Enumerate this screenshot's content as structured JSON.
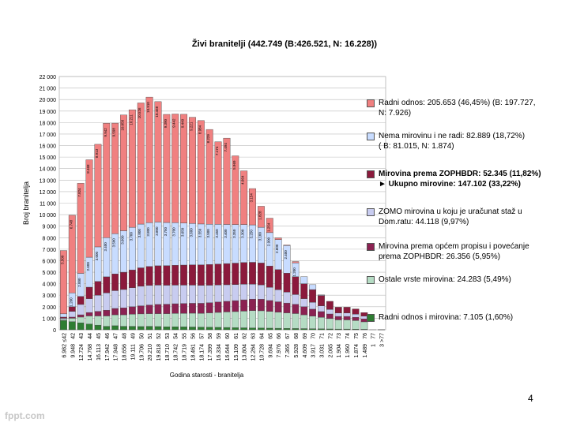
{
  "slide": {
    "title": "Živi branitelji (442.749 (B:426.521, N: 16.228))",
    "page_number": "4",
    "footer_brand": "fppt.com"
  },
  "chart_data": {
    "type": "bar",
    "stacked": true,
    "xlabel": "Godina starosti - branitelja",
    "ylabel": "Broj branitelja",
    "ylim": [
      0,
      22000
    ],
    "yticks": [
      "0",
      "1 000",
      "2 000",
      "3 000",
      "4 000",
      "5 000",
      "6 000",
      "7 000",
      "8 000",
      "9 000",
      "10 000",
      "11 000",
      "12 000",
      "13 000",
      "14 000",
      "15 000",
      "16 000",
      "17 000",
      "18 000",
      "19 000",
      "20 000",
      "21 000",
      "22 000"
    ],
    "grid": true,
    "legend_position": "right",
    "categories": [
      {
        "age": "≤42",
        "total": "6.982"
      },
      {
        "age": "42",
        "total": "9.948"
      },
      {
        "age": "43",
        "total": "12.724"
      },
      {
        "age": "44",
        "total": "14.768"
      },
      {
        "age": "45",
        "total": "16.113"
      },
      {
        "age": "46",
        "total": "17.942"
      },
      {
        "age": "47",
        "total": "17.948"
      },
      {
        "age": "48",
        "total": "18.656"
      },
      {
        "age": "49",
        "total": "19.111"
      },
      {
        "age": "50",
        "total": "19.706"
      },
      {
        "age": "51",
        "total": "20.210"
      },
      {
        "age": "52",
        "total": "19.818"
      },
      {
        "age": "53",
        "total": "18.710"
      },
      {
        "age": "54",
        "total": "18.742"
      },
      {
        "age": "55",
        "total": "18.719"
      },
      {
        "age": "56",
        "total": "18.461"
      },
      {
        "age": "57",
        "total": "18.174"
      },
      {
        "age": "58",
        "total": "17.399"
      },
      {
        "age": "59",
        "total": "16.334"
      },
      {
        "age": "60",
        "total": "16.644"
      },
      {
        "age": "61",
        "total": "15.109"
      },
      {
        "age": "62",
        "total": "13.804"
      },
      {
        "age": "63",
        "total": "12.264"
      },
      {
        "age": "64",
        "total": "10.728"
      },
      {
        "age": "65",
        "total": "9.694"
      },
      {
        "age": "66",
        "total": "7.976"
      },
      {
        "age": "67",
        "total": "7.365"
      },
      {
        "age": "68",
        "total": "5.928"
      },
      {
        "age": "69",
        "total": "4.609"
      },
      {
        "age": "70",
        "total": "3.917"
      },
      {
        "age": "71",
        "total": "3.031"
      },
      {
        "age": "72",
        "total": "2.065"
      },
      {
        "age": "73",
        "total": "1.904"
      },
      {
        "age": "74",
        "total": "1.960"
      },
      {
        "age": "75",
        "total": "1.874"
      },
      {
        "age": "76",
        "total": "1.489"
      },
      {
        "age": "77",
        "total": "1"
      },
      {
        "age": ">77",
        "total": "3"
      }
    ],
    "series": [
      {
        "name": "Radni odnos i mirovina: 7.105 (1,60%)",
        "color": "#2e7d32",
        "values": [
          800,
          700,
          600,
          500,
          400,
          300,
          350,
          300,
          300,
          280,
          300,
          280,
          260,
          260,
          250,
          240,
          230,
          220,
          210,
          200,
          180,
          170,
          160,
          150,
          140,
          130,
          120,
          110,
          100,
          90,
          80,
          70,
          60,
          60,
          50,
          40,
          0,
          1
        ]
      },
      {
        "name": "Ostale vrste mirovina: 24.283 (5,49%)",
        "color": "#b5dcc4",
        "values": [
          100,
          300,
          500,
          700,
          800,
          900,
          950,
          1000,
          1050,
          1100,
          1100,
          1120,
          1140,
          1160,
          1180,
          1200,
          1200,
          1250,
          1300,
          1350,
          1400,
          1450,
          1500,
          1500,
          1450,
          1400,
          1350,
          1300,
          1200,
          1100,
          1000,
          900,
          800,
          800,
          750,
          650,
          1,
          1
        ]
      },
      {
        "name": "Mirovina prema općem propisu i povećanje prema ZOPHBDR: 26.356 (5,95%)",
        "color": "#8b2252",
        "values": [
          0,
          100,
          200,
          300,
          400,
          500,
          550,
          600,
          650,
          700,
          750,
          800,
          820,
          840,
          850,
          860,
          870,
          880,
          900,
          920,
          950,
          980,
          1000,
          1000,
          950,
          900,
          850,
          800,
          700,
          600,
          500,
          400,
          300,
          300,
          280,
          250,
          0,
          0
        ]
      },
      {
        "name": "ZOMO mirovina u koju je uračunat staž u Dom.ratu: 44.118 (9,97%)",
        "color": "#c8ccf0",
        "values": [
          100,
          500,
          900,
          1200,
          1400,
          1500,
          1550,
          1600,
          1650,
          1700,
          1700,
          1680,
          1650,
          1620,
          1600,
          1580,
          1560,
          1520,
          1480,
          1440,
          1400,
          1360,
          1300,
          1250,
          1150,
          1050,
          950,
          850,
          700,
          600,
          500,
          400,
          300,
          300,
          280,
          250,
          0,
          0
        ]
      },
      {
        "name": "Mirovina prema ZOPHBDR: 52.345 (11,82%)\n► Ukupno mirovine: 147.102 (33,22%)",
        "color": "#8b1a3c",
        "values": [
          100,
          400,
          700,
          1000,
          1200,
          1400,
          1450,
          1500,
          1550,
          1600,
          1650,
          1680,
          1700,
          1720,
          1740,
          1760,
          1780,
          1800,
          1820,
          1840,
          1860,
          1880,
          1900,
          1900,
          1850,
          1750,
          1650,
          1550,
          1300,
          1100,
          900,
          700,
          500,
          500,
          450,
          299,
          0,
          1
        ]
      },
      {
        "name": "Nema mirovinu i ne radi: 82.889 (18,72%)\n( B: 81.015, N: 1.874)",
        "color": "#c8dcff",
        "values": [
          282,
          1200,
          2000,
          2600,
          3000,
          3400,
          3500,
          3600,
          3700,
          3800,
          3800,
          3800,
          3750,
          3700,
          3650,
          3600,
          3550,
          3500,
          3450,
          3400,
          3350,
          3300,
          3250,
          3100,
          2900,
          2600,
          2400,
          1200,
          609,
          427,
          51,
          0,
          0,
          0,
          0,
          0,
          0,
          0
        ]
      },
      {
        "name": "Radni odnos: 205.653 (46,45%) (B: 197.727, N: 7.926)",
        "color": "#f08080",
        "values": [
          5500,
          6748,
          7824,
          8468,
          8913,
          9942,
          9598,
          10056,
          10211,
          10526,
          10910,
          10458,
          9390,
          9442,
          9449,
          9221,
          8984,
          8229,
          7174,
          7494,
          5969,
          4664,
          3154,
          1828,
          1254,
          146,
          45,
          118,
          0,
          0,
          0,
          0,
          0,
          0,
          0,
          0,
          0,
          0
        ]
      }
    ],
    "bar_labels": {
      "Radni odnos: 205.653 (46,45%) (B: 197.727, N: 7.926)": [
        "5.500",
        "6.748",
        "7.824",
        "8.468",
        "8.913",
        "9.942",
        "9.598",
        "10.056",
        "10.211",
        "10.526",
        "10.910",
        "10.458",
        "9.390",
        "9.442",
        "9.449",
        "9.221",
        "8.984",
        "8.229",
        "7.174",
        "7.494",
        "5.969",
        "4.664",
        "3.154",
        "1.828",
        "1.254",
        "146",
        "45",
        "118",
        "",
        "",
        "",
        "",
        "",
        "",
        "",
        "",
        "",
        ""
      ],
      "Nema mirovinu i ne radi: 82.889 (18,72%)\n( B: 81.015, N: 1.874)": [
        "282",
        "1.200",
        "2.000",
        "2.600",
        "3.000",
        "3.400",
        "3.500",
        "3.600",
        "3.700",
        "3.800",
        "3.800",
        "3.800",
        "3.750",
        "3.700",
        "3.650",
        "3.600",
        "3.550",
        "3.500",
        "3.450",
        "3.400",
        "3.350",
        "3.300",
        "3.250",
        "3.100",
        "2.900",
        "2.600",
        "2.400",
        "1.200",
        "609",
        "427",
        "51",
        "",
        "",
        "",
        "",
        "",
        "",
        ""
      ]
    }
  }
}
